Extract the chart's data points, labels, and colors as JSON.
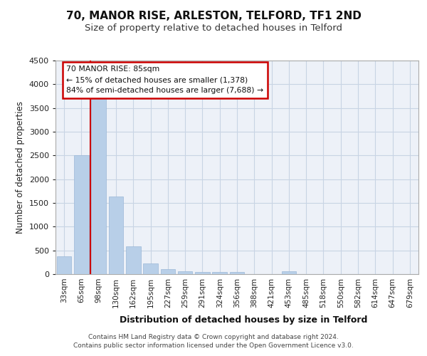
{
  "title_line1": "70, MANOR RISE, ARLESTON, TELFORD, TF1 2ND",
  "title_line2": "Size of property relative to detached houses in Telford",
  "xlabel": "Distribution of detached houses by size in Telford",
  "ylabel": "Number of detached properties",
  "categories": [
    "33sqm",
    "65sqm",
    "98sqm",
    "130sqm",
    "162sqm",
    "195sqm",
    "227sqm",
    "259sqm",
    "291sqm",
    "324sqm",
    "356sqm",
    "388sqm",
    "421sqm",
    "453sqm",
    "485sqm",
    "518sqm",
    "550sqm",
    "582sqm",
    "614sqm",
    "647sqm",
    "679sqm"
  ],
  "values": [
    380,
    2500,
    3700,
    1640,
    590,
    230,
    100,
    60,
    50,
    50,
    40,
    0,
    0,
    60,
    0,
    0,
    0,
    0,
    0,
    0,
    0
  ],
  "bar_color": "#b8cfe8",
  "bar_edge_color": "#9ab8d8",
  "ylim": [
    0,
    4500
  ],
  "yticks": [
    0,
    500,
    1000,
    1500,
    2000,
    2500,
    3000,
    3500,
    4000,
    4500
  ],
  "grid_color": "#c8d4e4",
  "background_color": "#edf1f8",
  "annotation_text": "70 MANOR RISE: 85sqm\n← 15% of detached houses are smaller (1,378)\n84% of semi-detached houses are larger (7,688) →",
  "red_line_color": "#cc0000",
  "footer_line1": "Contains HM Land Registry data © Crown copyright and database right 2024.",
  "footer_line2": "Contains public sector information licensed under the Open Government Licence v3.0."
}
